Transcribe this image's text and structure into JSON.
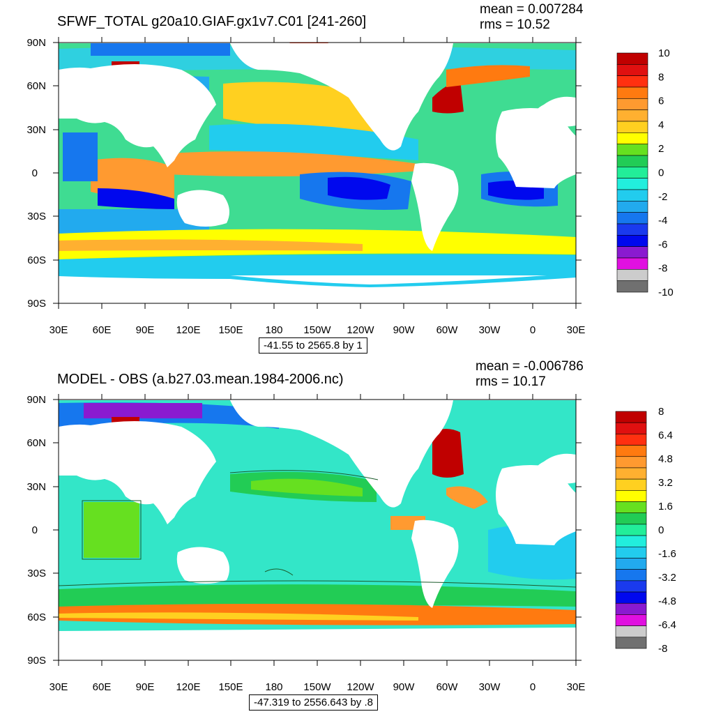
{
  "colors": {
    "ocean_base": "#33e6e6",
    "land": "#ffffff",
    "frame": "#000000"
  },
  "panels": [
    {
      "title": "SFWF_TOTAL g20a10.GIAF.gx1v7.C01 [241-260]",
      "mean": "mean = 0.007284",
      "rms": "rms = 10.52",
      "info": "-41.55 to 2565.8 by 1",
      "lat_labels": [
        "90N",
        "60N",
        "30N",
        "0",
        "30S",
        "60S",
        "90S"
      ],
      "lon_labels": [
        "30E",
        "60E",
        "90E",
        "120E",
        "150E",
        "180",
        "150W",
        "120W",
        "90W",
        "60W",
        "30W",
        "0",
        "30E"
      ],
      "colorbar": {
        "labels": [
          "10",
          "8",
          "6",
          "4",
          "2",
          "0",
          "-2",
          "-4",
          "-6",
          "-8",
          "-10"
        ],
        "colors": [
          "#c00000",
          "#e01010",
          "#ff3010",
          "#ff7a10",
          "#ff9a30",
          "#ffb030",
          "#ffd020",
          "#ffff00",
          "#66e020",
          "#22cc55",
          "#22ee99",
          "#22eedd",
          "#22ccee",
          "#22aaee",
          "#1677ee",
          "#1a3aee",
          "#0008ee",
          "#8a1ad0",
          "#e010e0",
          "#cccccc",
          "#707070"
        ]
      }
    },
    {
      "title": "MODEL - OBS (a.b27.03.mean.1984-2006.nc)",
      "mean": "mean = -0.006786",
      "rms": "rms = 10.17",
      "info": "-47.319 to 2556.643 by .8",
      "lat_labels": [
        "90N",
        "60N",
        "30N",
        "0",
        "30S",
        "60S",
        "90S"
      ],
      "lon_labels": [
        "30E",
        "60E",
        "90E",
        "120E",
        "150E",
        "180",
        "150W",
        "120W",
        "90W",
        "60W",
        "30W",
        "0",
        "30E"
      ],
      "colorbar": {
        "labels": [
          "8",
          "6.4",
          "4.8",
          "3.2",
          "1.6",
          "0",
          "-1.6",
          "-3.2",
          "-4.8",
          "-6.4",
          "-8"
        ],
        "colors": [
          "#c00000",
          "#e01010",
          "#ff3010",
          "#ff7a10",
          "#ff9a30",
          "#ffb030",
          "#ffd020",
          "#ffff00",
          "#66e020",
          "#22cc55",
          "#22ee99",
          "#22eedd",
          "#22ccee",
          "#22aaee",
          "#1677ee",
          "#1a3aee",
          "#0008ee",
          "#8a1ad0",
          "#e010e0",
          "#cccccc",
          "#707070"
        ]
      }
    }
  ]
}
